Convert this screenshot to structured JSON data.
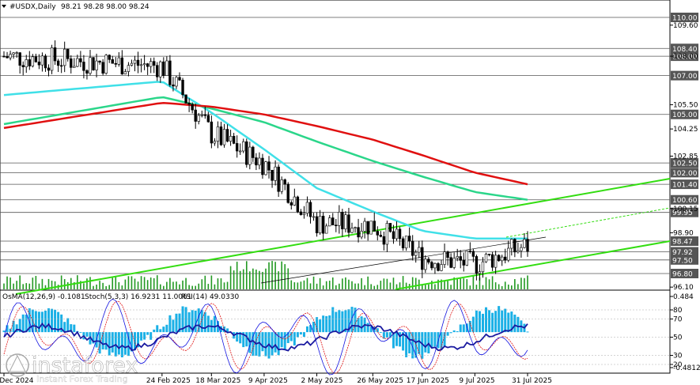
{
  "header": {
    "symbol": "#USDX,Daily",
    "ohlc": "98.21 98.28 98.00 98.24"
  },
  "sub_header": {
    "osma": "OsMA(12,26,9) -0.1081",
    "stoch": "Stoch(5,3,3) 16.9231 11.0061",
    "rsi": "RSI(14) 49.0330"
  },
  "price_axis_ticks": [
    "109.60",
    "108.00",
    "105.50",
    "104.25",
    "102.85",
    "100.15",
    "98.90",
    "96.10"
  ],
  "level_labels": [
    "110.00",
    "108.40",
    "108.00",
    "107.00",
    "105.00",
    "102.50",
    "102.00",
    "101.40",
    "100.60",
    "99.95",
    "98.47",
    "97.92",
    "97.50",
    "96.80"
  ],
  "indicator_axis_ticks": [
    "0.484",
    "80",
    "70",
    "50",
    "30",
    "20",
    "-0.4812"
  ],
  "date_labels": [
    "16 Dec 2024",
    "24 Feb 2025",
    "18 Mar 2025",
    "9 Apr 2025",
    "2 May 2025",
    "26 May 2025",
    "17 Jun 2025",
    "9 Jul 2025",
    "31 Jul 2025"
  ],
  "watermark": {
    "brand": "instaforex",
    "tagline": "Instant Forex Trading"
  },
  "colors": {
    "candles": "#000000",
    "ma_fast": "#40e0e8",
    "ma_mid": "#2bd68a",
    "ma_slow": "#e01010",
    "trendlines": "#33dd11",
    "volume": "#229922",
    "osma": "#1ab0e6",
    "stoch_main": "#1010e0",
    "stoch_signal": "#e01010",
    "rsi": "#1a1aa0",
    "level_label_bg": "#555555"
  },
  "chart_data": {
    "type": "line",
    "title": "#USDX,Daily",
    "ylim": [
      95.9,
      111.0
    ],
    "dates": [
      "16 Dec 2024",
      "24 Feb 2025",
      "18 Mar 2025",
      "9 Apr 2025",
      "2 May 2025",
      "26 May 2025",
      "17 Jun 2025",
      "9 Jul 2025",
      "31 Jul 2025"
    ],
    "x": [
      0,
      48,
      63,
      79,
      95,
      112,
      127,
      143,
      159
    ],
    "series": [
      {
        "name": "close",
        "values": [
          108.0,
          107.5,
          104.0,
          102.5,
          99.4,
          99.3,
          97.6,
          97.3,
          98.24
        ]
      },
      {
        "name": "ma_fast",
        "values": [
          106.0,
          106.7,
          105.1,
          103.2,
          101.2,
          100.0,
          99.0,
          98.6,
          98.6
        ]
      },
      {
        "name": "ma_mid",
        "values": [
          104.5,
          105.9,
          105.3,
          104.6,
          103.6,
          102.6,
          101.8,
          101.0,
          100.6
        ]
      },
      {
        "name": "ma_slow",
        "values": [
          104.3,
          105.6,
          105.4,
          105.0,
          104.4,
          103.7,
          102.9,
          102.0,
          101.4
        ]
      }
    ],
    "levels": [
      110.0,
      108.4,
      108.0,
      107.0,
      105.0,
      102.5,
      102.0,
      101.4,
      100.6,
      99.95,
      98.47,
      97.92,
      97.5,
      96.8
    ],
    "grid": false,
    "indicators": {
      "osma": -0.1081,
      "stoch_main": 16.9231,
      "stoch_signal": 11.0061,
      "rsi": 49.033,
      "osma_range": [
        -0.4812,
        0.484
      ],
      "oscillator_levels": [
        80,
        70,
        50,
        30,
        20
      ]
    }
  }
}
